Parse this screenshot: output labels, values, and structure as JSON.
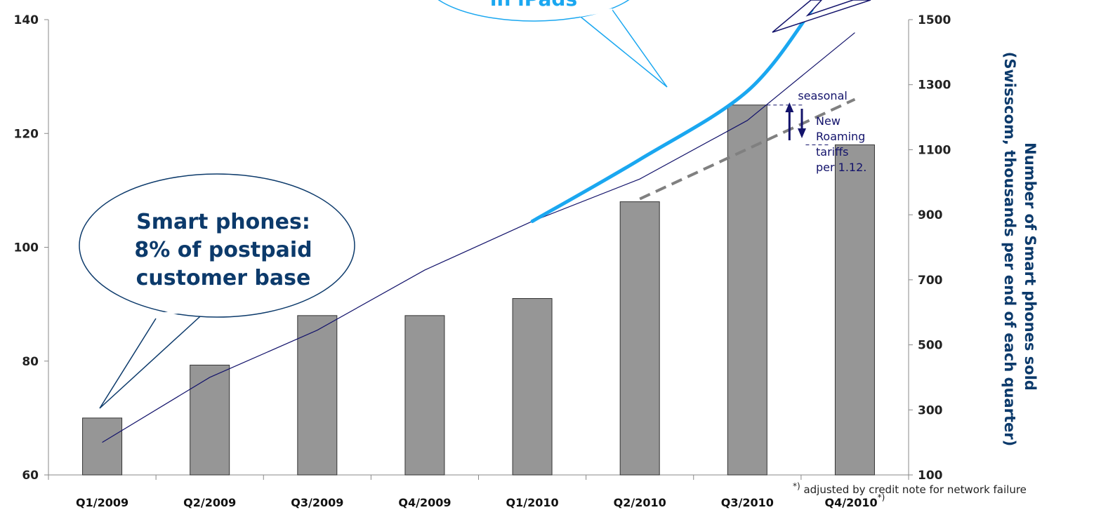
{
  "chart_data": {
    "type": "bar",
    "categories": [
      "Q1/2009",
      "Q2/2009",
      "Q3/2009",
      "Q4/2009",
      "Q1/2010",
      "Q2/2010",
      "Q3/2010",
      "Q4/2010"
    ],
    "category_suffix": {
      "Q4/2010": "*)"
    },
    "values": [
      70,
      79.3,
      88,
      88,
      91,
      108,
      125,
      118
    ],
    "ylim": [
      60,
      140
    ],
    "yticks": [
      60,
      80,
      100,
      120,
      140
    ],
    "y2lim": [
      100,
      1500
    ],
    "y2ticks": [
      100,
      300,
      500,
      700,
      900,
      1100,
      1300,
      1500
    ],
    "y2label_line1": "Number of Smart phones sold",
    "y2label_line2": "(Swisscom, thousands per end of each quarter)",
    "line_series": {
      "axis": "y2",
      "x": [
        "Q1/2009",
        "Q2/2009",
        "Q3/2009",
        "Q4/2009",
        "Q1/2010",
        "Q2/2010",
        "Q3/2010",
        "Q4/2010"
      ],
      "values": [
        200,
        400,
        545,
        730,
        880,
        1010,
        1190,
        1460
      ]
    },
    "ipad_curve": {
      "axis": "y2",
      "x": [
        4,
        5,
        6,
        6.6
      ],
      "values": [
        880,
        1070,
        1280,
        1530
      ]
    },
    "trend_line": {
      "axis": "y1",
      "x": [
        5,
        7
      ],
      "values": [
        108.5,
        126
      ]
    },
    "bar_color": "#969696",
    "line_color": "#13136b",
    "ipad_color": "#1aa7f0",
    "trend_color": "#808080",
    "callouts": {
      "smartphones": [
        "Smart phones:",
        "8% of postpaid",
        "customer base"
      ],
      "ipads": "in iPads"
    },
    "annotations": {
      "seasonal": "seasonal",
      "roaming": [
        "New",
        "Roaming",
        "tariffs",
        "per 1.12."
      ]
    },
    "footnote_sup": "*)",
    "footnote_text": " adjusted by credit note for network failure"
  }
}
